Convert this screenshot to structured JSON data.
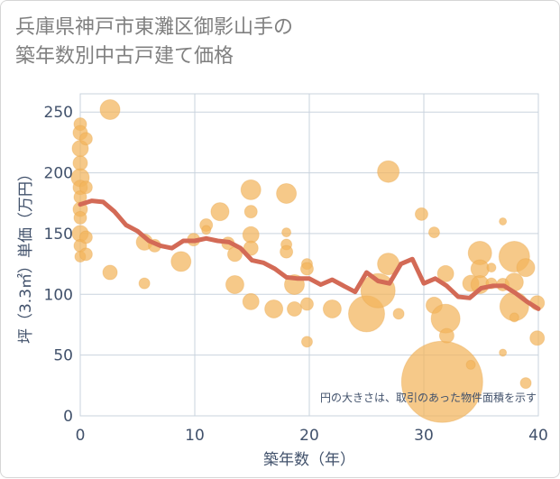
{
  "chart_data": {
    "type": "scatter",
    "title": "兵庫県神戸市東灘区御影山手の\n築年数別中古戸建て価格",
    "xlabel": "築年数（年）",
    "ylabel": "坪（3.3㎡）単価（万円）",
    "xlim": [
      0,
      40
    ],
    "ylim": [
      0,
      265
    ],
    "x_ticks": [
      0,
      10,
      20,
      30,
      40
    ],
    "y_ticks": [
      0,
      50,
      100,
      150,
      200,
      250
    ],
    "grid": true,
    "note": "円の大きさは、取引のあった物件面積を示す",
    "colors": {
      "bubble": "#f2b45c",
      "line": "#d36a56",
      "grid": "#c9d3de",
      "axis_text": "#41516b"
    },
    "bubbles": [
      {
        "x": 0,
        "y": 240,
        "size": 7
      },
      {
        "x": 0,
        "y": 233,
        "size": 8
      },
      {
        "x": 0,
        "y": 220,
        "size": 9
      },
      {
        "x": 0,
        "y": 208,
        "size": 8
      },
      {
        "x": 0,
        "y": 196,
        "size": 10
      },
      {
        "x": 0,
        "y": 188,
        "size": 8
      },
      {
        "x": 0,
        "y": 180,
        "size": 7
      },
      {
        "x": 0,
        "y": 170,
        "size": 8
      },
      {
        "x": 0,
        "y": 163,
        "size": 7
      },
      {
        "x": 0,
        "y": 150,
        "size": 9
      },
      {
        "x": 0,
        "y": 140,
        "size": 7
      },
      {
        "x": 0,
        "y": 131,
        "size": 6
      },
      {
        "x": 0.5,
        "y": 228,
        "size": 7
      },
      {
        "x": 0.5,
        "y": 188,
        "size": 7
      },
      {
        "x": 0.5,
        "y": 147,
        "size": 7
      },
      {
        "x": 0.5,
        "y": 133,
        "size": 7
      },
      {
        "x": 2.6,
        "y": 252,
        "size": 11
      },
      {
        "x": 2.6,
        "y": 118,
        "size": 8
      },
      {
        "x": 5.6,
        "y": 109,
        "size": 6
      },
      {
        "x": 5.6,
        "y": 143,
        "size": 9
      },
      {
        "x": 6.5,
        "y": 140,
        "size": 7
      },
      {
        "x": 8.8,
        "y": 127,
        "size": 11
      },
      {
        "x": 9.9,
        "y": 145,
        "size": 7
      },
      {
        "x": 11,
        "y": 157,
        "size": 7
      },
      {
        "x": 11,
        "y": 153,
        "size": 5
      },
      {
        "x": 12.2,
        "y": 168,
        "size": 10
      },
      {
        "x": 12.9,
        "y": 142,
        "size": 7
      },
      {
        "x": 13.5,
        "y": 133,
        "size": 8
      },
      {
        "x": 13.5,
        "y": 108,
        "size": 10
      },
      {
        "x": 14.9,
        "y": 186,
        "size": 11
      },
      {
        "x": 14.9,
        "y": 168,
        "size": 7
      },
      {
        "x": 14.9,
        "y": 149,
        "size": 9
      },
      {
        "x": 14.9,
        "y": 138,
        "size": 8
      },
      {
        "x": 14.9,
        "y": 94,
        "size": 9
      },
      {
        "x": 16.9,
        "y": 88,
        "size": 10
      },
      {
        "x": 18,
        "y": 183,
        "size": 11
      },
      {
        "x": 18,
        "y": 151,
        "size": 5
      },
      {
        "x": 18,
        "y": 141,
        "size": 6
      },
      {
        "x": 18,
        "y": 135,
        "size": 7
      },
      {
        "x": 18.7,
        "y": 108,
        "size": 11
      },
      {
        "x": 18.7,
        "y": 88,
        "size": 8
      },
      {
        "x": 19.8,
        "y": 125,
        "size": 6
      },
      {
        "x": 19.8,
        "y": 121,
        "size": 7
      },
      {
        "x": 19.8,
        "y": 92,
        "size": 7
      },
      {
        "x": 19.8,
        "y": 61,
        "size": 6
      },
      {
        "x": 22,
        "y": 88,
        "size": 10
      },
      {
        "x": 25,
        "y": 84,
        "size": 20
      },
      {
        "x": 26,
        "y": 103,
        "size": 19
      },
      {
        "x": 26.9,
        "y": 201,
        "size": 12
      },
      {
        "x": 26.9,
        "y": 125,
        "size": 12
      },
      {
        "x": 27.8,
        "y": 84,
        "size": 6
      },
      {
        "x": 29.8,
        "y": 166,
        "size": 7
      },
      {
        "x": 30.9,
        "y": 151,
        "size": 6
      },
      {
        "x": 30.9,
        "y": 91,
        "size": 9
      },
      {
        "x": 31.6,
        "y": 28,
        "size": 45
      },
      {
        "x": 31.9,
        "y": 117,
        "size": 9
      },
      {
        "x": 31.9,
        "y": 80,
        "size": 16
      },
      {
        "x": 32,
        "y": 66,
        "size": 8
      },
      {
        "x": 34.1,
        "y": 42,
        "size": 5
      },
      {
        "x": 34.1,
        "y": 109,
        "size": 9
      },
      {
        "x": 34.9,
        "y": 134,
        "size": 13
      },
      {
        "x": 34.9,
        "y": 121,
        "size": 10
      },
      {
        "x": 34.9,
        "y": 108,
        "size": 10
      },
      {
        "x": 35.9,
        "y": 122,
        "size": 5
      },
      {
        "x": 35.9,
        "y": 109,
        "size": 6
      },
      {
        "x": 36.9,
        "y": 160,
        "size": 4
      },
      {
        "x": 36.9,
        "y": 108,
        "size": 7
      },
      {
        "x": 36.9,
        "y": 52,
        "size": 4
      },
      {
        "x": 37.9,
        "y": 131,
        "size": 17
      },
      {
        "x": 37.9,
        "y": 110,
        "size": 10
      },
      {
        "x": 37.9,
        "y": 90,
        "size": 16
      },
      {
        "x": 37.9,
        "y": 81,
        "size": 5
      },
      {
        "x": 38.9,
        "y": 122,
        "size": 10
      },
      {
        "x": 38.9,
        "y": 27,
        "size": 6
      },
      {
        "x": 39.9,
        "y": 93,
        "size": 8
      },
      {
        "x": 39.9,
        "y": 64,
        "size": 8
      }
    ],
    "trend_line": {
      "x": [
        0,
        1,
        2,
        3,
        4,
        5,
        6,
        7,
        8,
        9,
        10,
        11,
        12,
        13,
        14,
        15,
        16,
        17,
        18,
        19,
        20,
        21,
        22,
        23,
        24,
        25,
        26,
        27,
        28,
        29,
        30,
        31,
        32,
        33,
        34,
        35,
        36,
        37,
        38,
        39,
        40
      ],
      "y": [
        174,
        177,
        176,
        168,
        157,
        152,
        144,
        140,
        138,
        144,
        144,
        146,
        144,
        143,
        138,
        128,
        126,
        121,
        114,
        113,
        113,
        108,
        112,
        107,
        102,
        118,
        111,
        109,
        125,
        129,
        109,
        113,
        107,
        98,
        97,
        105,
        107,
        107,
        101,
        94,
        88
      ]
    }
  }
}
